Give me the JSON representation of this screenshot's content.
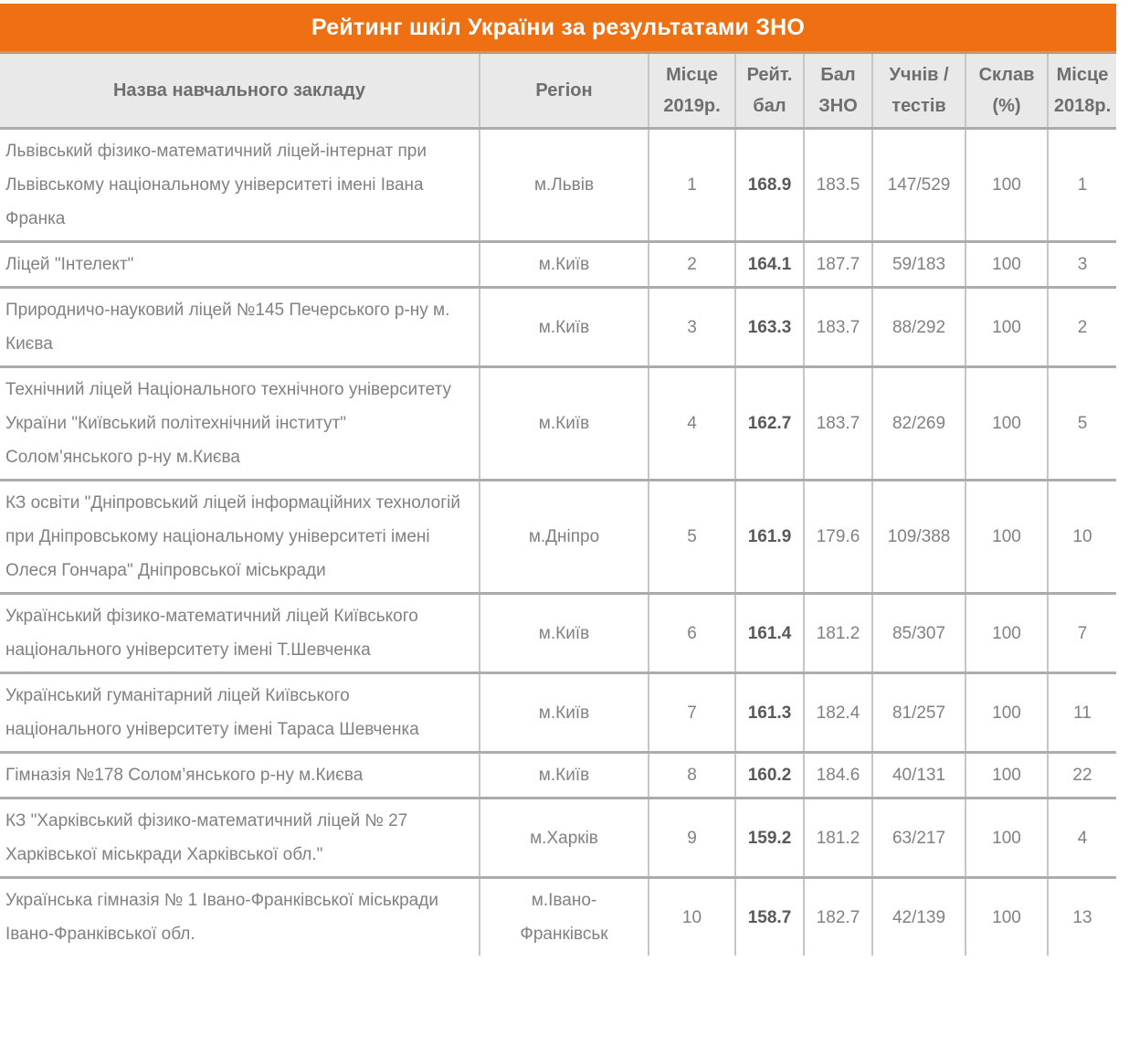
{
  "title_bar": {
    "text": "Рейтинг шкіл України за результатами ЗНО"
  },
  "colors": {
    "accent_orange": "#EE7012",
    "header_background": "#E9E9E9",
    "header_text": "#6E6E6E",
    "body_text": "#818181",
    "rating_text": "#595959",
    "row_divider": "#ACACAC",
    "column_divider": "#C6C6C6"
  },
  "table": {
    "columns": [
      {
        "key": "name",
        "label": "Назва навчального закладу"
      },
      {
        "key": "region",
        "label": "Регіон"
      },
      {
        "key": "place_2019",
        "label": "Місце 2019р."
      },
      {
        "key": "rating",
        "label": "Рейт. бал"
      },
      {
        "key": "zno",
        "label": "Бал ЗНО"
      },
      {
        "key": "students_tests",
        "label": "Учнів / тестів"
      },
      {
        "key": "passed_pct",
        "label": "Склав (%)"
      },
      {
        "key": "place_2018",
        "label": "Місце 2018р."
      }
    ],
    "rows": [
      {
        "name": "Львівський фізико-математичний ліцей-інтернат при Львівському національному університеті імені Івана Франка",
        "region": "м.Львів",
        "place_2019": "1",
        "rating": "168.9",
        "zno": "183.5",
        "students_tests": "147/529",
        "passed_pct": "100",
        "place_2018": "1"
      },
      {
        "name": "Ліцей \"Інтелект\"",
        "region": "м.Київ",
        "place_2019": "2",
        "rating": "164.1",
        "zno": "187.7",
        "students_tests": "59/183",
        "passed_pct": "100",
        "place_2018": "3"
      },
      {
        "name": "Природничо-науковий ліцей №145 Печерського р-ну м. Києва",
        "region": "м.Київ",
        "place_2019": "3",
        "rating": "163.3",
        "zno": "183.7",
        "students_tests": "88/292",
        "passed_pct": "100",
        "place_2018": "2"
      },
      {
        "name": "Технічний ліцей Національного технічного університету України \"Київський політехнічний інститут\" Солом’янського р-ну м.Києва",
        "region": "м.Київ",
        "place_2019": "4",
        "rating": "162.7",
        "zno": "183.7",
        "students_tests": "82/269",
        "passed_pct": "100",
        "place_2018": "5"
      },
      {
        "name": "КЗ освіти \"Дніпровський ліцей інформаційних технологій при Дніпровському національному університеті імені Олеся Гончара\" Дніпровської міськради",
        "region": "м.Дніпро",
        "place_2019": "5",
        "rating": "161.9",
        "zno": "179.6",
        "students_tests": "109/388",
        "passed_pct": "100",
        "place_2018": "10"
      },
      {
        "name": "Український фізико-математичний ліцей Київського національного університету імені Т.Шевченка",
        "region": "м.Київ",
        "place_2019": "6",
        "rating": "161.4",
        "zno": "181.2",
        "students_tests": "85/307",
        "passed_pct": "100",
        "place_2018": "7"
      },
      {
        "name": "Український гуманітарний ліцей Київського національного університету імені Тараса Шевченка",
        "region": "м.Київ",
        "place_2019": "7",
        "rating": "161.3",
        "zno": "182.4",
        "students_tests": "81/257",
        "passed_pct": "100",
        "place_2018": "11"
      },
      {
        "name": "Гімназія №178 Солом’янського р-ну м.Києва",
        "region": "м.Київ",
        "place_2019": "8",
        "rating": "160.2",
        "zno": "184.6",
        "students_tests": "40/131",
        "passed_pct": "100",
        "place_2018": "22"
      },
      {
        "name": "КЗ \"Харківський фізико-математичний ліцей № 27 Харківської міськради Харківської обл.\"",
        "region": "м.Харків",
        "place_2019": "9",
        "rating": "159.2",
        "zno": "181.2",
        "students_tests": "63/217",
        "passed_pct": "100",
        "place_2018": "4"
      },
      {
        "name": "Українська гімназія № 1 Івано-Франківської міськради Івано-Франківської обл.",
        "region": "м.Івано-Франківськ",
        "place_2019": "10",
        "rating": "158.7",
        "zno": "182.7",
        "students_tests": "42/139",
        "passed_pct": "100",
        "place_2018": "13"
      }
    ]
  }
}
